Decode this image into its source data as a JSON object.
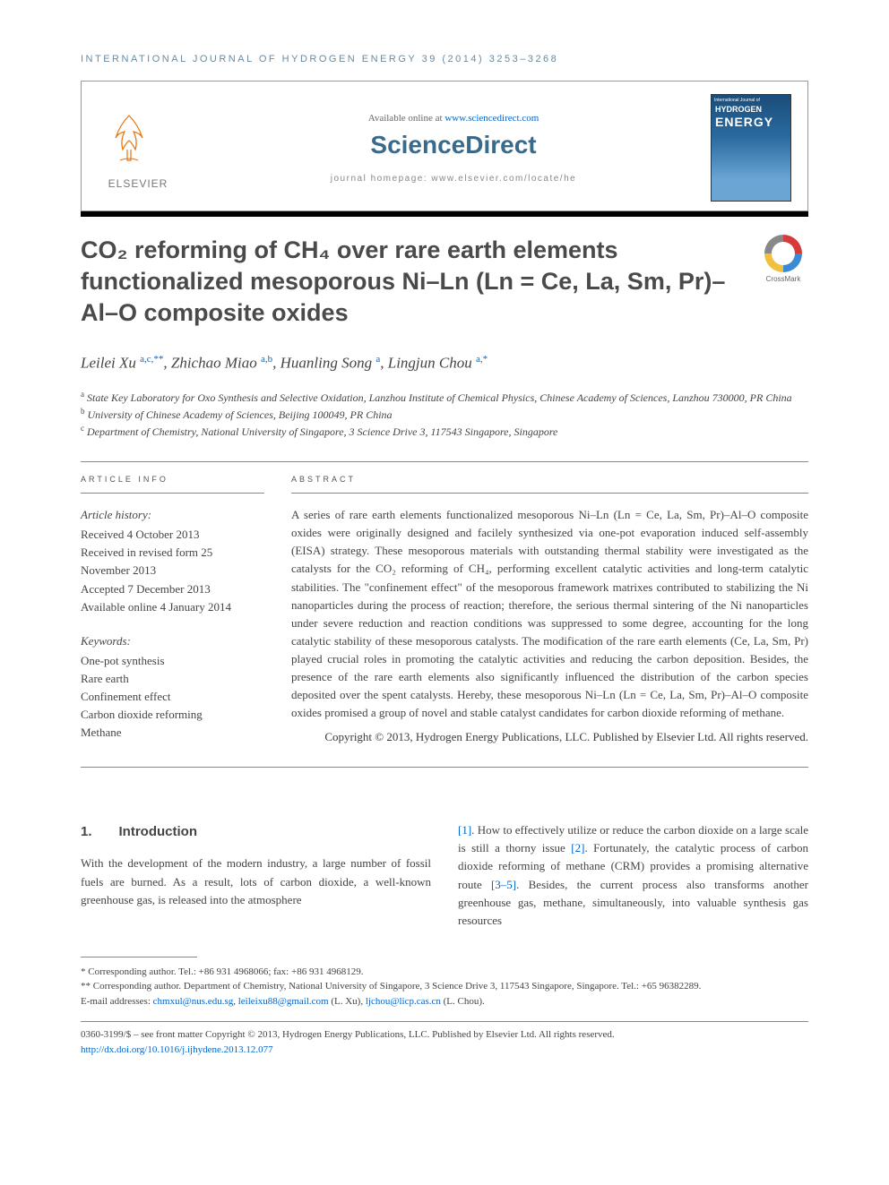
{
  "journal_header": "INTERNATIONAL JOURNAL OF HYDROGEN ENERGY 39 (2014) 3253–3268",
  "header": {
    "elsevier": "ELSEVIER",
    "available_prefix": "Available online at ",
    "available_link": "www.sciencedirect.com",
    "sciencedirect": "ScienceDirect",
    "homepage": "journal homepage: www.elsevier.com/locate/he",
    "cover_top": "International Journal of",
    "cover_line1": "HYDROGEN",
    "cover_line2": "ENERGY"
  },
  "crossmark_label": "CrossMark",
  "title": "CO₂ reforming of CH₄ over rare earth elements functionalized mesoporous Ni–Ln (Ln = Ce, La, Sm, Pr)–Al–O composite oxides",
  "authors_html": "Leilei Xu <sup class='sup-sym'>a,c,**</sup>, Zhichao Miao <sup class='sup-sym'>a,b</sup>, Huanling Song <sup class='sup-sym'>a</sup>, Lingjun Chou <sup class='sup-sym'>a,*</sup>",
  "affiliations": {
    "a": "State Key Laboratory for Oxo Synthesis and Selective Oxidation, Lanzhou Institute of Chemical Physics, Chinese Academy of Sciences, Lanzhou 730000, PR China",
    "b": "University of Chinese Academy of Sciences, Beijing 100049, PR China",
    "c": "Department of Chemistry, National University of Singapore, 3 Science Drive 3, 117543 Singapore, Singapore"
  },
  "labels": {
    "article_info": "ARTICLE INFO",
    "abstract": "ABSTRACT"
  },
  "history": {
    "heading": "Article history:",
    "received": "Received 4 October 2013",
    "revised": "Received in revised form 25 November 2013",
    "accepted": "Accepted 7 December 2013",
    "online": "Available online 4 January 2014"
  },
  "keywords": {
    "heading": "Keywords:",
    "items": [
      "One-pot synthesis",
      "Rare earth",
      "Confinement effect",
      "Carbon dioxide reforming",
      "Methane"
    ]
  },
  "abstract": "A series of rare earth elements functionalized mesoporous Ni–Ln (Ln = Ce, La, Sm, Pr)–Al–O composite oxides were originally designed and facilely synthesized via one-pot evaporation induced self-assembly (EISA) strategy. These mesoporous materials with outstanding thermal stability were investigated as the catalysts for the CO₂ reforming of CH₄, performing excellent catalytic activities and long-term catalytic stabilities. The \"confinement effect\" of the mesoporous framework matrixes contributed to stabilizing the Ni nanoparticles during the process of reaction; therefore, the serious thermal sintering of the Ni nanoparticles under severe reduction and reaction conditions was suppressed to some degree, accounting for the long catalytic stability of these mesoporous catalysts. The modification of the rare earth elements (Ce, La, Sm, Pr) played crucial roles in promoting the catalytic activities and reducing the carbon deposition. Besides, the presence of the rare earth elements also significantly influenced the distribution of the carbon species deposited over the spent catalysts. Hereby, these mesoporous Ni–Ln (Ln = Ce, La, Sm, Pr)–Al–O composite oxides promised a group of novel and stable catalyst candidates for carbon dioxide reforming of methane.",
  "abstract_copyright": "Copyright © 2013, Hydrogen Energy Publications, LLC. Published by Elsevier Ltd. All rights reserved.",
  "intro": {
    "heading_num": "1.",
    "heading": "Introduction",
    "col1": "With the development of the modern industry, a large number of fossil fuels are burned. As a result, lots of carbon dioxide, a well-known greenhouse gas, is released into the atmosphere",
    "col2_p1": ". How to effectively utilize or reduce the carbon dioxide on a large scale is still a thorny issue ",
    "col2_p2": ". Fortunately, the catalytic process of carbon dioxide reforming of methane (CRM) provides a promising alternative route ",
    "col2_p3": ". Besides, the current process also transforms another greenhouse gas, methane, simultaneously, into valuable synthesis gas resources",
    "ref1": "[1]",
    "ref2": "[2]",
    "ref3": "[3–5]"
  },
  "footnotes": {
    "corr1": "* Corresponding author. Tel.: +86 931 4968066; fax: +86 931 4968129.",
    "corr2": "** Corresponding author. Department of Chemistry, National University of Singapore, 3 Science Drive 3, 117543 Singapore, Singapore. Tel.: +65 96382289.",
    "email_label": "E-mail addresses: ",
    "email1": "chmxul@nus.edu.sg",
    "email_sep1": ", ",
    "email2": "leileixu88@gmail.com",
    "email_name1": " (L. Xu), ",
    "email3": "ljchou@licp.cas.cn",
    "email_name2": " (L. Chou)."
  },
  "bottom": {
    "line1": "0360-3199/$ – see front matter Copyright © 2013, Hydrogen Energy Publications, LLC. Published by Elsevier Ltd. All rights reserved.",
    "doi": "http://dx.doi.org/10.1016/j.ijhydene.2013.12.077"
  },
  "colors": {
    "link": "#0066cc",
    "header_text": "#6b8a9e",
    "title_text": "#4a4a4a",
    "body_text": "#444444"
  }
}
